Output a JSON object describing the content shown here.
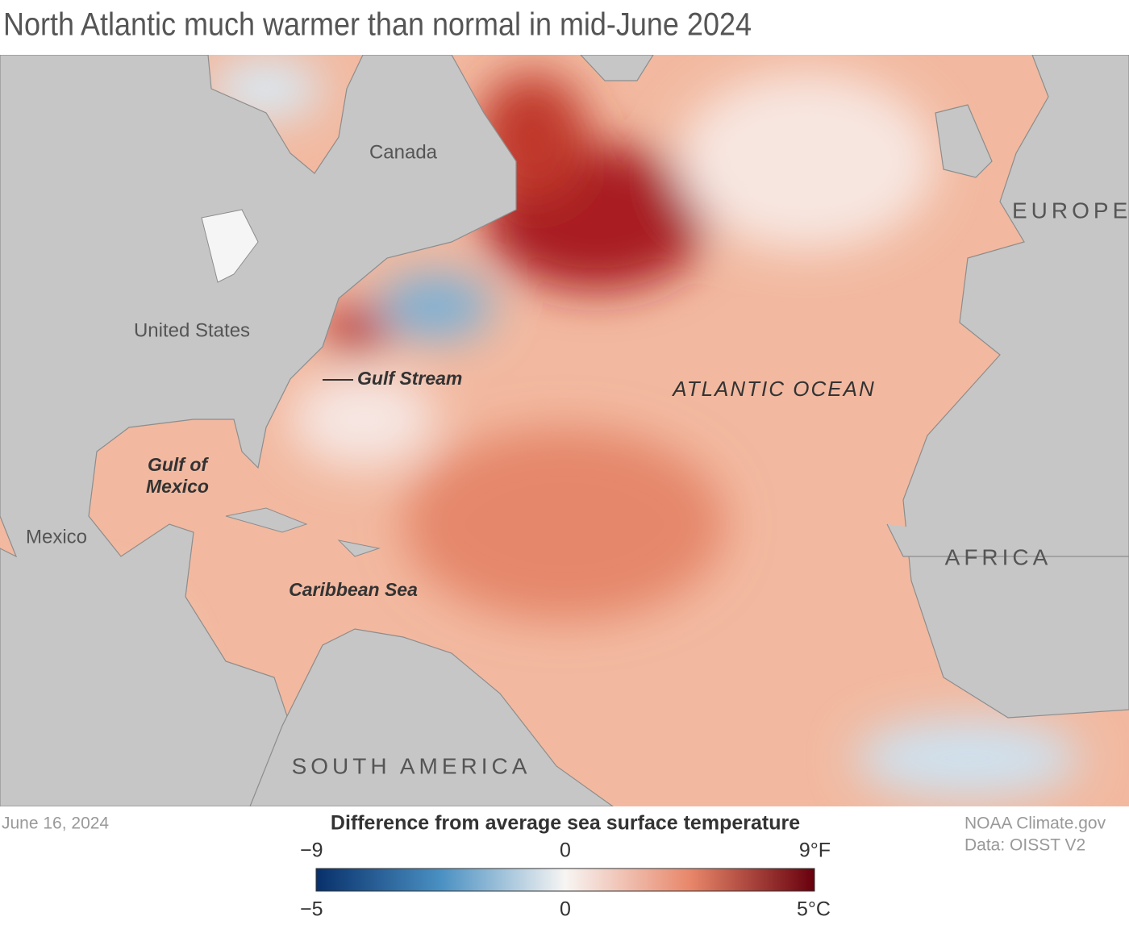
{
  "header": {
    "title": "North Atlantic much warmer than normal in mid-June 2024"
  },
  "map_labels": {
    "canada": "Canada",
    "united_states": "United States",
    "mexico": "Mexico",
    "gulf_of_mexico": [
      "Gulf of",
      "Mexico"
    ],
    "caribbean_sea": "Caribbean Sea",
    "gulf_stream": "Gulf Stream",
    "atlantic_ocean": "ATLANTIC OCEAN",
    "europe": "EUROPE",
    "africa": "AFRICA",
    "south_america": "SOUTH AMERICA"
  },
  "footer": {
    "date": "June 16, 2024",
    "credit": "NOAA Climate.gov",
    "source": "Data: OISST V2"
  },
  "legend": {
    "title": "Difference from average sea surface temperature",
    "fahrenheit_labels": [
      "−9",
      "0",
      "9°F"
    ],
    "celsius_labels": [
      "−5",
      "0",
      "5°C"
    ]
  }
}
